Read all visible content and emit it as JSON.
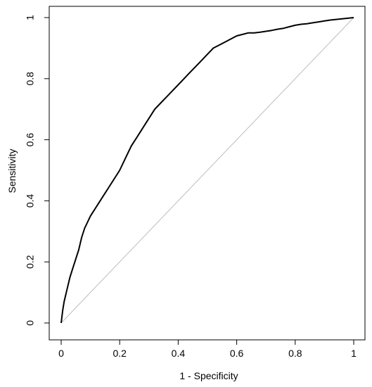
{
  "chart_data": {
    "type": "line",
    "title": "",
    "xlabel": "1 - Specificity",
    "ylabel": "Sensitivity",
    "xlim": [
      0,
      1
    ],
    "ylim": [
      0,
      1
    ],
    "xticks": [
      "0",
      "0.2",
      "0.4",
      "0.6",
      "0.8",
      "1"
    ],
    "yticks": [
      "0",
      "0.2",
      "0.4",
      "0.6",
      "0.8",
      "1"
    ],
    "grid": false,
    "series": [
      {
        "color": "#000000",
        "x": [
          0,
          0.005,
          0.01,
          0.02,
          0.03,
          0.04,
          0.05,
          0.06,
          0.07,
          0.08,
          0.1,
          0.12,
          0.14,
          0.16,
          0.18,
          0.2,
          0.22,
          0.24,
          0.26,
          0.28,
          0.3,
          0.32,
          0.34,
          0.36,
          0.38,
          0.4,
          0.42,
          0.44,
          0.46,
          0.48,
          0.5,
          0.52,
          0.54,
          0.56,
          0.58,
          0.6,
          0.62,
          0.64,
          0.66,
          0.68,
          0.7,
          0.72,
          0.74,
          0.76,
          0.78,
          0.8,
          0.82,
          0.84,
          0.86,
          0.88,
          0.9,
          0.92,
          0.94,
          0.96,
          0.98,
          1.0
        ],
        "y": [
          0,
          0.04,
          0.07,
          0.11,
          0.15,
          0.18,
          0.21,
          0.24,
          0.28,
          0.31,
          0.35,
          0.38,
          0.41,
          0.44,
          0.47,
          0.5,
          0.54,
          0.58,
          0.61,
          0.64,
          0.67,
          0.7,
          0.72,
          0.74,
          0.76,
          0.78,
          0.8,
          0.82,
          0.84,
          0.86,
          0.88,
          0.9,
          0.91,
          0.92,
          0.93,
          0.94,
          0.945,
          0.95,
          0.95,
          0.952,
          0.955,
          0.958,
          0.962,
          0.965,
          0.97,
          0.975,
          0.978,
          0.98,
          0.983,
          0.986,
          0.989,
          0.992,
          0.994,
          0.996,
          0.998,
          1.0
        ]
      }
    ],
    "reference_line": {
      "x": [
        0,
        1
      ],
      "y": [
        0,
        1
      ],
      "color": "#bebebe"
    }
  }
}
